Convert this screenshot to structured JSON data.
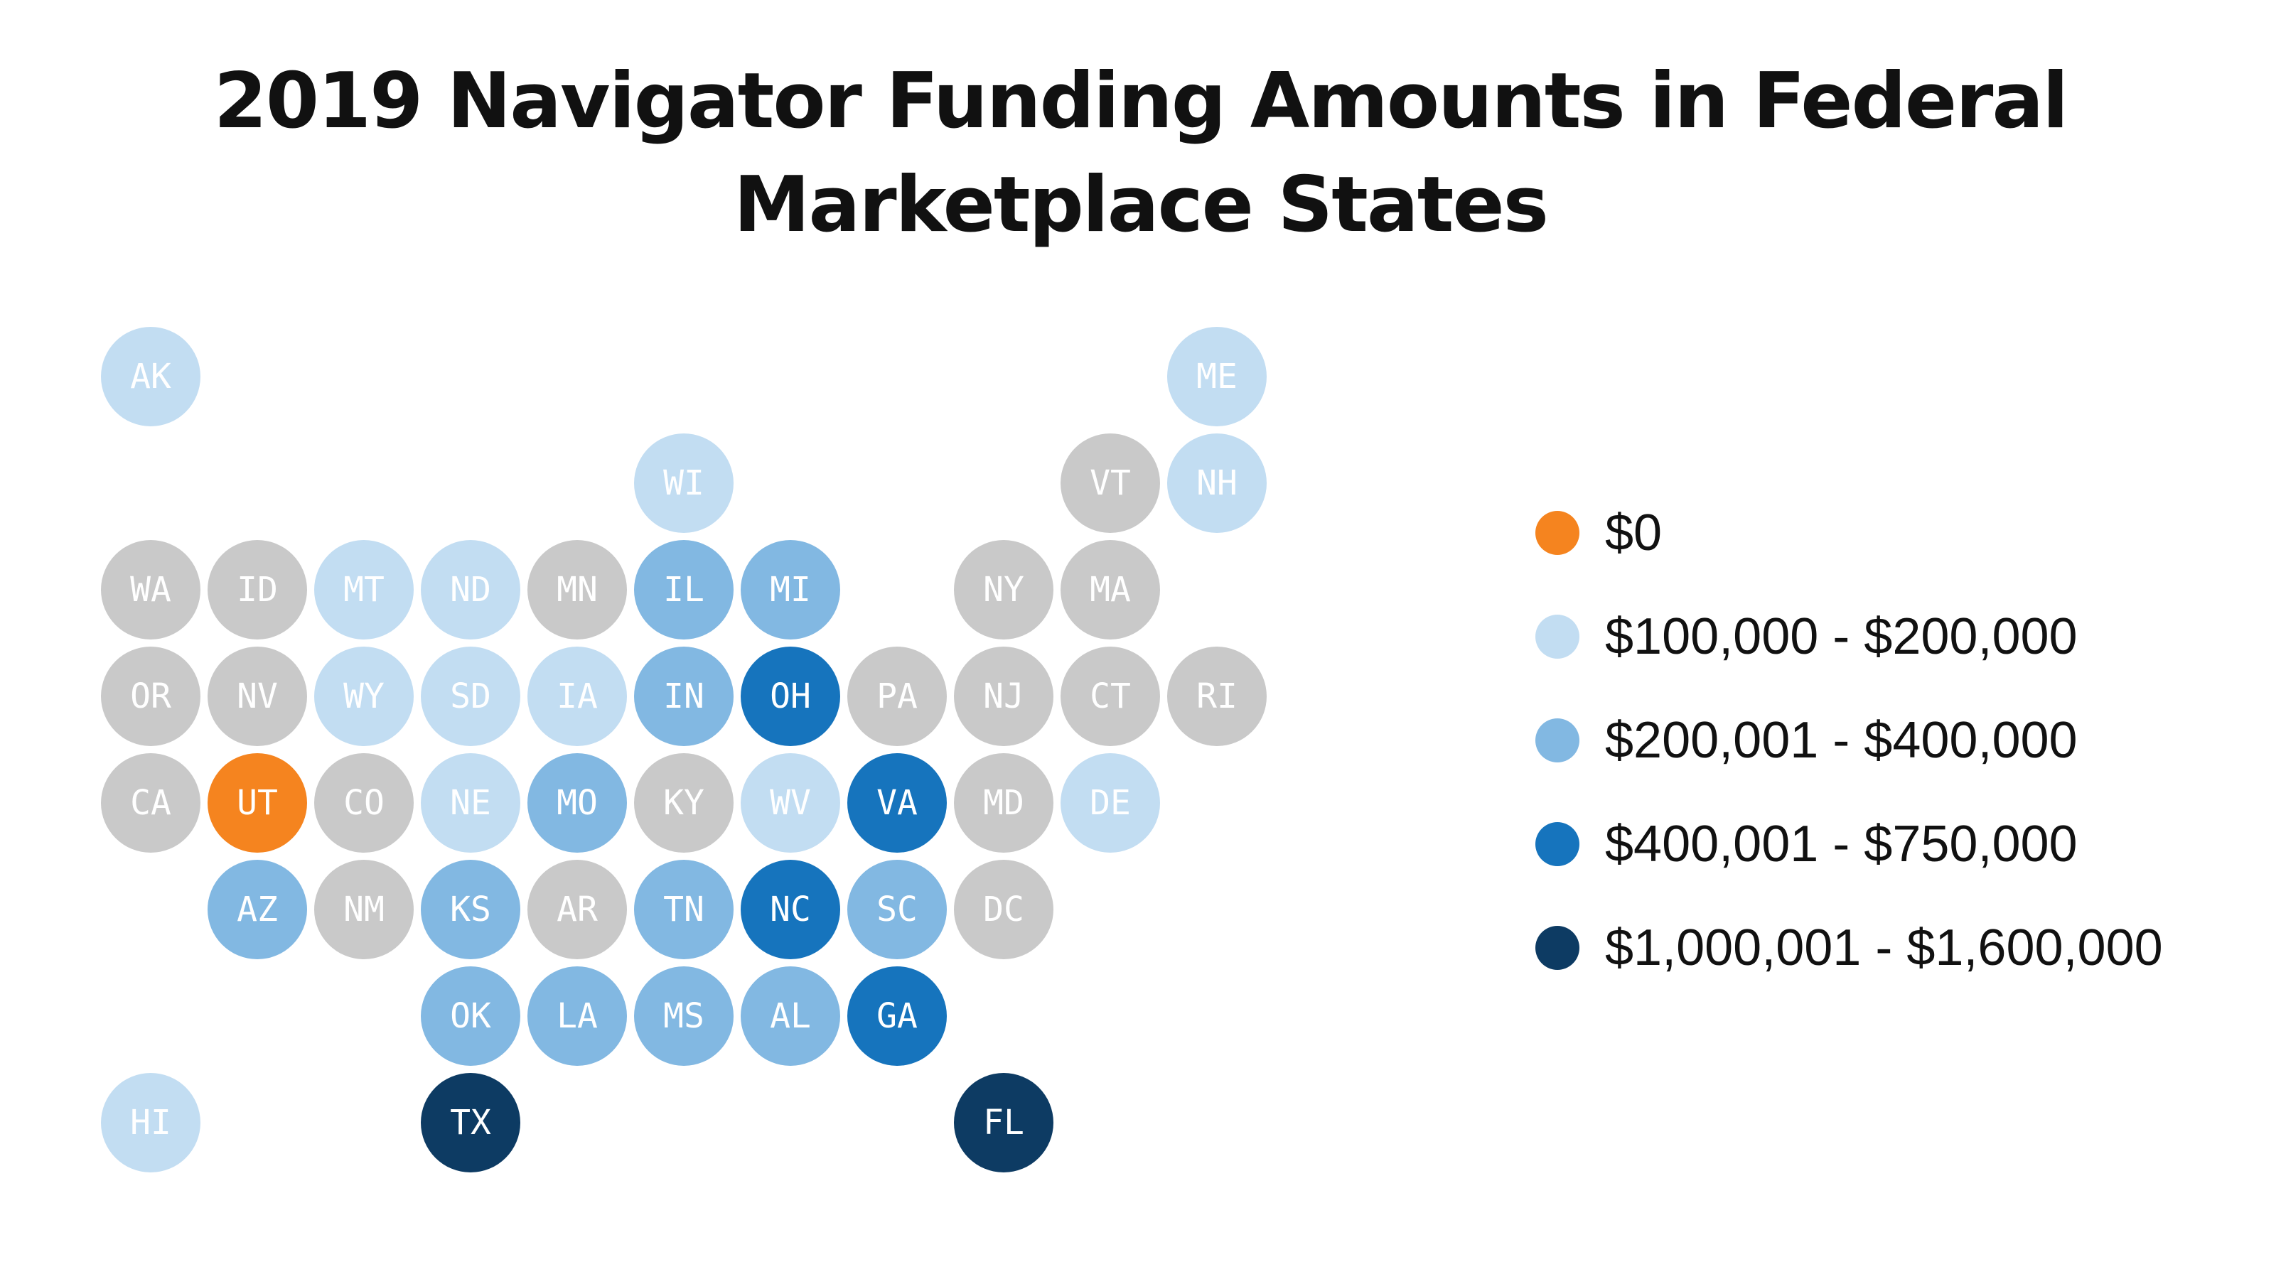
{
  "title": {
    "line1": "2019 Navigator Funding Amounts in Federal",
    "line2": "Marketplace States"
  },
  "colors": {
    "zero": "#f5841f",
    "tier1": "#c2ddf2",
    "tier2": "#82b8e2",
    "tier3": "#1674bd",
    "tier4": "#0d3b63",
    "none": "#c9c9c9"
  },
  "legend": [
    {
      "label": "$0",
      "color": "#f5841f"
    },
    {
      "label": "$100,000 - $200,000",
      "color": "#c2ddf2"
    },
    {
      "label": "$200,001 - $400,000",
      "color": "#82b8e2"
    },
    {
      "label": "$400,001 - $750,000",
      "color": "#1674bd"
    },
    {
      "label": "$1,000,001 - $1,600,000",
      "color": "#0d3b63"
    }
  ],
  "states": [
    {
      "abbr": "AK",
      "tier": "tier1"
    },
    {
      "abbr": "ME",
      "tier": "tier1"
    },
    {
      "abbr": "WI",
      "tier": "tier1"
    },
    {
      "abbr": "VT",
      "tier": "none"
    },
    {
      "abbr": "NH",
      "tier": "tier1"
    },
    {
      "abbr": "WA",
      "tier": "none"
    },
    {
      "abbr": "ID",
      "tier": "none"
    },
    {
      "abbr": "MT",
      "tier": "tier1"
    },
    {
      "abbr": "ND",
      "tier": "tier1"
    },
    {
      "abbr": "MN",
      "tier": "none"
    },
    {
      "abbr": "IL",
      "tier": "tier2"
    },
    {
      "abbr": "MI",
      "tier": "tier2"
    },
    {
      "abbr": "NY",
      "tier": "none"
    },
    {
      "abbr": "MA",
      "tier": "none"
    },
    {
      "abbr": "OR",
      "tier": "none"
    },
    {
      "abbr": "NV",
      "tier": "none"
    },
    {
      "abbr": "WY",
      "tier": "tier1"
    },
    {
      "abbr": "SD",
      "tier": "tier1"
    },
    {
      "abbr": "IA",
      "tier": "tier1"
    },
    {
      "abbr": "IN",
      "tier": "tier2"
    },
    {
      "abbr": "OH",
      "tier": "tier3"
    },
    {
      "abbr": "PA",
      "tier": "none"
    },
    {
      "abbr": "NJ",
      "tier": "none"
    },
    {
      "abbr": "CT",
      "tier": "none"
    },
    {
      "abbr": "RI",
      "tier": "none"
    },
    {
      "abbr": "CA",
      "tier": "none"
    },
    {
      "abbr": "UT",
      "tier": "zero"
    },
    {
      "abbr": "CO",
      "tier": "none"
    },
    {
      "abbr": "NE",
      "tier": "tier1"
    },
    {
      "abbr": "MO",
      "tier": "tier2"
    },
    {
      "abbr": "KY",
      "tier": "none"
    },
    {
      "abbr": "WV",
      "tier": "tier1"
    },
    {
      "abbr": "VA",
      "tier": "tier3"
    },
    {
      "abbr": "MD",
      "tier": "none"
    },
    {
      "abbr": "DE",
      "tier": "tier1"
    },
    {
      "abbr": "AZ",
      "tier": "tier2"
    },
    {
      "abbr": "NM",
      "tier": "none"
    },
    {
      "abbr": "KS",
      "tier": "tier2"
    },
    {
      "abbr": "AR",
      "tier": "none"
    },
    {
      "abbr": "TN",
      "tier": "tier2"
    },
    {
      "abbr": "NC",
      "tier": "tier3"
    },
    {
      "abbr": "SC",
      "tier": "tier2"
    },
    {
      "abbr": "DC",
      "tier": "none"
    },
    {
      "abbr": "OK",
      "tier": "tier2"
    },
    {
      "abbr": "LA",
      "tier": "tier2"
    },
    {
      "abbr": "MS",
      "tier": "tier2"
    },
    {
      "abbr": "AL",
      "tier": "tier2"
    },
    {
      "abbr": "GA",
      "tier": "tier3"
    },
    {
      "abbr": "HI",
      "tier": "tier1"
    },
    {
      "abbr": "TX",
      "tier": "tier4"
    },
    {
      "abbr": "FL",
      "tier": "tier4"
    }
  ]
}
